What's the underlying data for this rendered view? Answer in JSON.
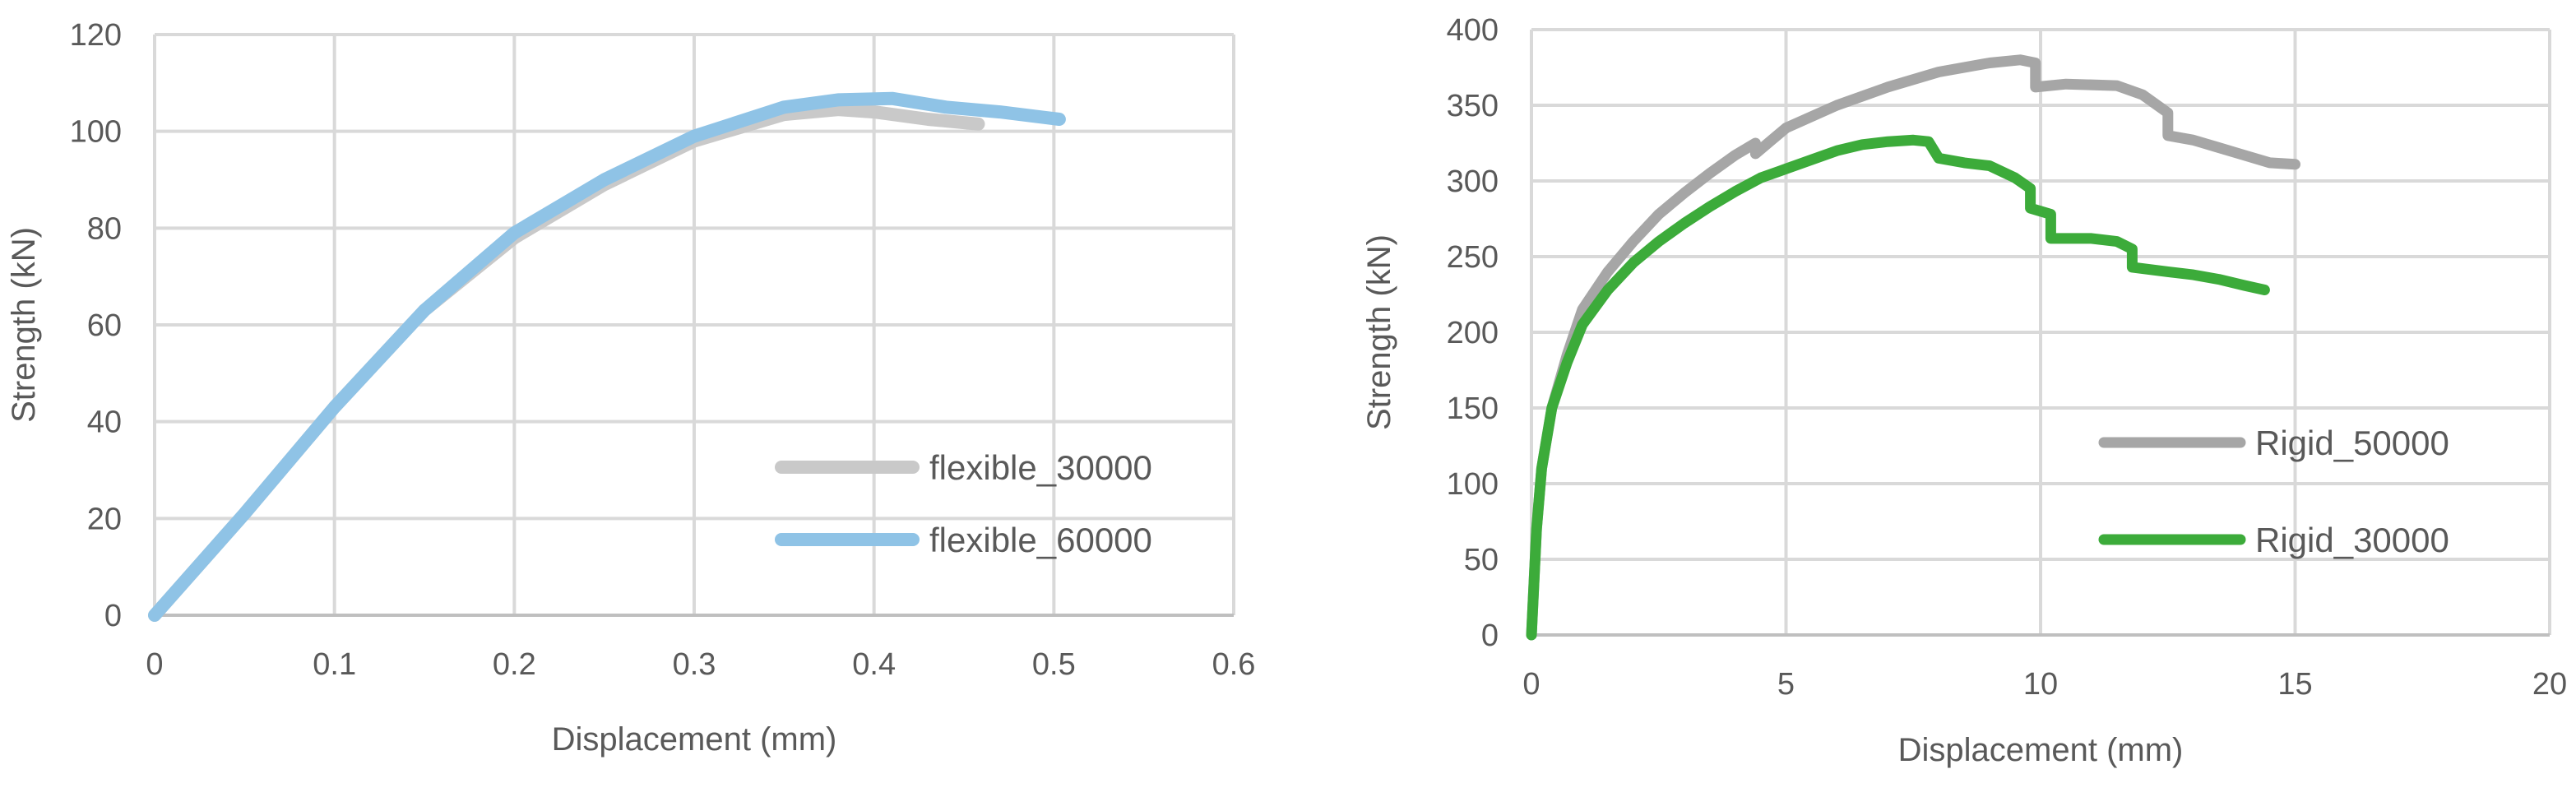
{
  "chart_data": [
    {
      "type": "line",
      "title": "",
      "xlabel": "Displacement (mm)",
      "ylabel": "Strength (kN)",
      "xlim": [
        0,
        0.6
      ],
      "ylim": [
        0,
        120
      ],
      "xticks": [
        0,
        0.1,
        0.2,
        0.3,
        0.4,
        0.5,
        0.6
      ],
      "yticks": [
        0,
        20,
        40,
        60,
        80,
        100,
        120
      ],
      "xtick_labels": [
        "0",
        "0.1",
        "0.2",
        "0.3",
        "0.4",
        "0.5",
        "0.6"
      ],
      "ytick_labels": [
        "0",
        "20",
        "40",
        "60",
        "80",
        "100",
        "120"
      ],
      "grid": true,
      "legend_position": "lower-right",
      "series": [
        {
          "name": "flexible_30000",
          "color": "#c9c9c9",
          "points": [
            [
              0,
              0
            ],
            [
              0.05,
              21
            ],
            [
              0.1,
              43
            ],
            [
              0.15,
              63
            ],
            [
              0.2,
              78
            ],
            [
              0.25,
              89
            ],
            [
              0.3,
              98
            ],
            [
              0.35,
              103.5
            ],
            [
              0.38,
              104.5
            ],
            [
              0.4,
              104
            ],
            [
              0.43,
              102.5
            ],
            [
              0.458,
              101.5
            ]
          ]
        },
        {
          "name": "flexible_60000",
          "color": "#8fc3e6",
          "points": [
            [
              0,
              0
            ],
            [
              0.05,
              21
            ],
            [
              0.1,
              43
            ],
            [
              0.15,
              63
            ],
            [
              0.2,
              79
            ],
            [
              0.25,
              90
            ],
            [
              0.3,
              99
            ],
            [
              0.35,
              105
            ],
            [
              0.38,
              106.5
            ],
            [
              0.41,
              106.8
            ],
            [
              0.44,
              105
            ],
            [
              0.47,
              104
            ],
            [
              0.503,
              102.5
            ]
          ]
        }
      ]
    },
    {
      "type": "line",
      "title": "",
      "xlabel": "Displacement (mm)",
      "ylabel": "Strength (kN)",
      "xlim": [
        0,
        20
      ],
      "ylim": [
        0,
        400
      ],
      "xticks": [
        0,
        5,
        10,
        15,
        20
      ],
      "yticks": [
        0,
        50,
        100,
        150,
        200,
        250,
        300,
        350,
        400
      ],
      "xtick_labels": [
        "0",
        "5",
        "10",
        "15",
        "20"
      ],
      "ytick_labels": [
        "0",
        "50",
        "100",
        "150",
        "200",
        "250",
        "300",
        "350",
        "400"
      ],
      "grid": true,
      "legend_position": "lower-right",
      "series": [
        {
          "name": "Rigid_50000",
          "color": "#a6a6a6",
          "points": [
            [
              0,
              0
            ],
            [
              0.1,
              70
            ],
            [
              0.2,
              110
            ],
            [
              0.4,
              150
            ],
            [
              0.7,
              185
            ],
            [
              1,
              215
            ],
            [
              1.5,
              240
            ],
            [
              2,
              260
            ],
            [
              2.5,
              278
            ],
            [
              3,
              292
            ],
            [
              3.5,
              305
            ],
            [
              4,
              317
            ],
            [
              4.4,
              325
            ],
            [
              4.4,
              318
            ],
            [
              5,
              335
            ],
            [
              6,
              350
            ],
            [
              7,
              362
            ],
            [
              8,
              372
            ],
            [
              9,
              378
            ],
            [
              9.6,
              380
            ],
            [
              9.9,
              378
            ],
            [
              9.9,
              362
            ],
            [
              10.5,
              364
            ],
            [
              11.5,
              363
            ],
            [
              12,
              357
            ],
            [
              12.5,
              345
            ],
            [
              12.5,
              330
            ],
            [
              13,
              327
            ],
            [
              13.5,
              322
            ],
            [
              14,
              317
            ],
            [
              14.5,
              312
            ],
            [
              15,
              311
            ]
          ]
        },
        {
          "name": "Rigid_30000",
          "color": "#3cab3a",
          "points": [
            [
              0,
              0
            ],
            [
              0.1,
              70
            ],
            [
              0.2,
              110
            ],
            [
              0.4,
              150
            ],
            [
              0.7,
              180
            ],
            [
              1,
              205
            ],
            [
              1.5,
              228
            ],
            [
              2,
              246
            ],
            [
              2.5,
              260
            ],
            [
              3,
              272
            ],
            [
              3.5,
              283
            ],
            [
              4,
              293
            ],
            [
              4.5,
              302
            ],
            [
              5,
              308
            ],
            [
              5.5,
              314
            ],
            [
              6,
              320
            ],
            [
              6.5,
              324
            ],
            [
              7,
              326
            ],
            [
              7.5,
              327
            ],
            [
              7.8,
              326
            ],
            [
              8,
              315
            ],
            [
              8.5,
              312
            ],
            [
              9,
              310
            ],
            [
              9.5,
              302
            ],
            [
              9.8,
              295
            ],
            [
              9.8,
              282
            ],
            [
              10.2,
              278
            ],
            [
              10.2,
              262
            ],
            [
              11,
              262
            ],
            [
              11.5,
              260
            ],
            [
              11.8,
              255
            ],
            [
              11.8,
              243
            ],
            [
              12.5,
              240
            ],
            [
              13,
              238
            ],
            [
              13.5,
              235
            ],
            [
              14,
              231
            ],
            [
              14.4,
              228
            ]
          ]
        }
      ]
    }
  ]
}
